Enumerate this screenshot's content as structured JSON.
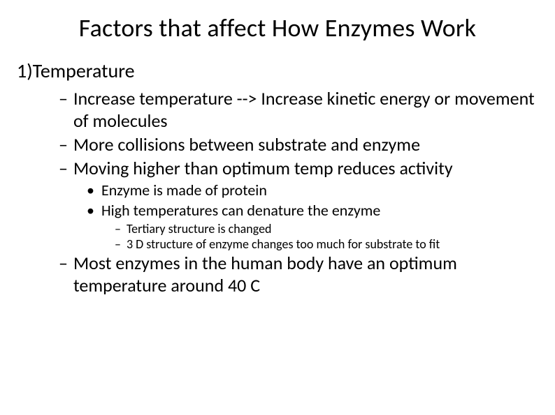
{
  "title": "Factors that affect How Enzymes Work",
  "section": {
    "heading": "1)Temperature",
    "points": [
      "Increase temperature  -->  Increase kinetic energy or movement of molecules",
      "More collisions between substrate and enzyme",
      "Moving higher than optimum temp reduces activity"
    ],
    "sub_points": [
      "Enzyme is made of protein",
      "High temperatures can denature the enzyme"
    ],
    "sub_sub_points": [
      "Tertiary structure is changed",
      "3 D structure of enzyme changes too much for substrate to fit"
    ],
    "final_point": "Most enzymes in the human body have an optimum temperature around 40 C"
  },
  "bullets": {
    "dash": "–",
    "dot": "•"
  },
  "style": {
    "background_color": "#ffffff",
    "text_color": "#000000",
    "font_family": "Calibri",
    "title_fontsize": 36,
    "lvl1_fontsize": 28,
    "lvl2_fontsize": 26,
    "lvl3_fontsize": 22,
    "lvl4_fontsize": 18
  }
}
